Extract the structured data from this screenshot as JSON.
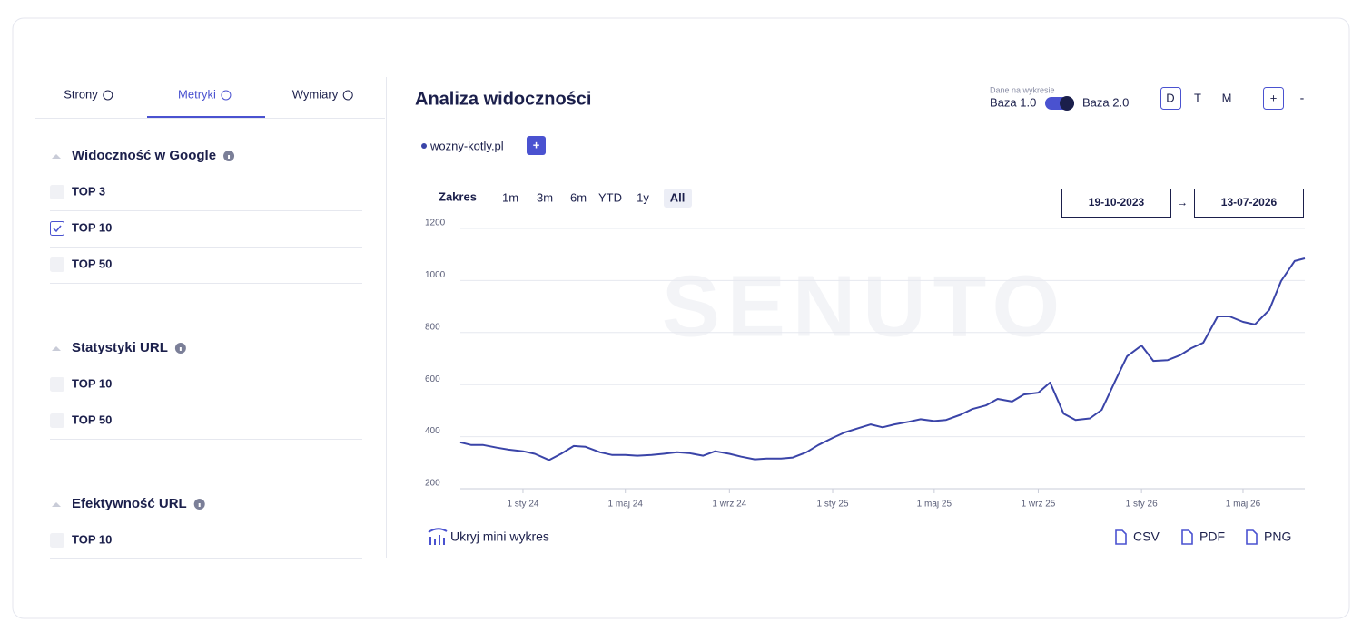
{
  "tabs": [
    {
      "label": "Strony",
      "active": false
    },
    {
      "label": "Metryki",
      "active": true
    },
    {
      "label": "Wymiary",
      "active": false
    }
  ],
  "sections": [
    {
      "title": "Widoczność w Google",
      "items": [
        {
          "label": "TOP 3",
          "checked": false
        },
        {
          "label": "TOP 10",
          "checked": true
        },
        {
          "label": "TOP 50",
          "checked": false
        }
      ]
    },
    {
      "title": "Statystyki URL",
      "items": [
        {
          "label": "TOP 10",
          "checked": false
        },
        {
          "label": "TOP 50",
          "checked": false
        }
      ]
    },
    {
      "title": "Efektywność URL",
      "items": [
        {
          "label": "TOP 10",
          "checked": false
        }
      ]
    }
  ],
  "header": {
    "title": "Analiza widoczności",
    "data_source_label": "Dane na wykresie",
    "base_options": [
      "Baza 1.0",
      "Baza 2.0"
    ],
    "granularity": [
      {
        "label": "D",
        "active": true
      },
      {
        "label": "T",
        "active": false
      },
      {
        "label": "M",
        "active": false
      }
    ],
    "zoom": [
      "+",
      "-"
    ]
  },
  "add_series_button": "+",
  "range": {
    "label": "Zakres",
    "options": [
      {
        "label": "1m",
        "active": false
      },
      {
        "label": "3m",
        "active": false
      },
      {
        "label": "6m",
        "active": false
      },
      {
        "label": "YTD",
        "active": false
      },
      {
        "label": "1y",
        "active": false
      },
      {
        "label": "All",
        "active": true
      }
    ]
  },
  "dates": {
    "from": "19-10-2023",
    "separator": "→",
    "to": "13-07-2026"
  },
  "watermark": "SENUTO",
  "footer": {
    "toggle_mini": "Ukryj mini wykres",
    "exports": [
      "CSV",
      "PDF",
      "PNG"
    ]
  },
  "chart_data": {
    "type": "line",
    "x": [
      "2023-10-19",
      "2023-11-01",
      "2023-11-15",
      "2023-12-01",
      "2023-12-15",
      "2024-01-01",
      "2024-01-15",
      "2024-02-01",
      "2024-02-15",
      "2024-03-01",
      "2024-03-15",
      "2024-04-01",
      "2024-04-15",
      "2024-05-01",
      "2024-05-15",
      "2024-06-01",
      "2024-06-15",
      "2024-07-01",
      "2024-07-15",
      "2024-08-01",
      "2024-08-15",
      "2024-09-01",
      "2024-09-15",
      "2024-10-01",
      "2024-10-15",
      "2024-11-01",
      "2024-11-15",
      "2024-12-01",
      "2024-12-15",
      "2025-01-01",
      "2025-01-15",
      "2025-02-01",
      "2025-02-15",
      "2025-03-01",
      "2025-03-15",
      "2025-04-01",
      "2025-04-15",
      "2025-05-01",
      "2025-05-15",
      "2025-06-01",
      "2025-06-15",
      "2025-07-01",
      "2025-07-15",
      "2025-08-01",
      "2025-08-15",
      "2025-09-01",
      "2025-09-15",
      "2025-10-01",
      "2025-10-15",
      "2025-11-01",
      "2025-11-15",
      "2025-12-01",
      "2025-12-15",
      "2026-01-01",
      "2026-01-15",
      "2026-02-01",
      "2026-02-15",
      "2026-03-01",
      "2026-03-15",
      "2026-04-01",
      "2026-04-15",
      "2026-05-01",
      "2026-05-15",
      "2026-06-01",
      "2026-06-15",
      "2026-07-01",
      "2026-07-13"
    ],
    "series": [
      {
        "name": "wozny-kotly.pl",
        "color": "#3a44a8",
        "values": [
          378,
          368,
          368,
          358,
          350,
          344,
          334,
          310,
          334,
          364,
          361,
          340,
          330,
          330,
          327,
          330,
          334,
          340,
          337,
          327,
          344,
          334,
          323,
          313,
          316,
          316,
          320,
          340,
          368,
          395,
          416,
          433,
          447,
          436,
          447,
          457,
          467,
          460,
          464,
          484,
          506,
          520,
          545,
          535,
          562,
          569,
          608,
          488,
          464,
          470,
          503,
          615,
          709,
          750,
          691,
          694,
          712,
          740,
          761,
          862,
          862,
          841,
          831,
          887,
          998,
          1075,
          1085
        ]
      }
    ],
    "xlim": [
      "2023-10-19",
      "2026-07-13"
    ],
    "xticks": [
      {
        "value": "2024-01-01",
        "label": "1 sty 24"
      },
      {
        "value": "2024-05-01",
        "label": "1 maj 24"
      },
      {
        "value": "2024-09-01",
        "label": "1 wrz 24"
      },
      {
        "value": "2025-01-01",
        "label": "1 sty 25"
      },
      {
        "value": "2025-05-01",
        "label": "1 maj 25"
      },
      {
        "value": "2025-09-01",
        "label": "1 wrz 25"
      },
      {
        "value": "2026-01-01",
        "label": "1 sty 26"
      },
      {
        "value": "2026-05-01",
        "label": "1 maj 26"
      }
    ],
    "ylim": [
      200,
      1200
    ],
    "yticks": [
      200,
      400,
      600,
      800,
      1000,
      1200
    ],
    "grid": true
  }
}
